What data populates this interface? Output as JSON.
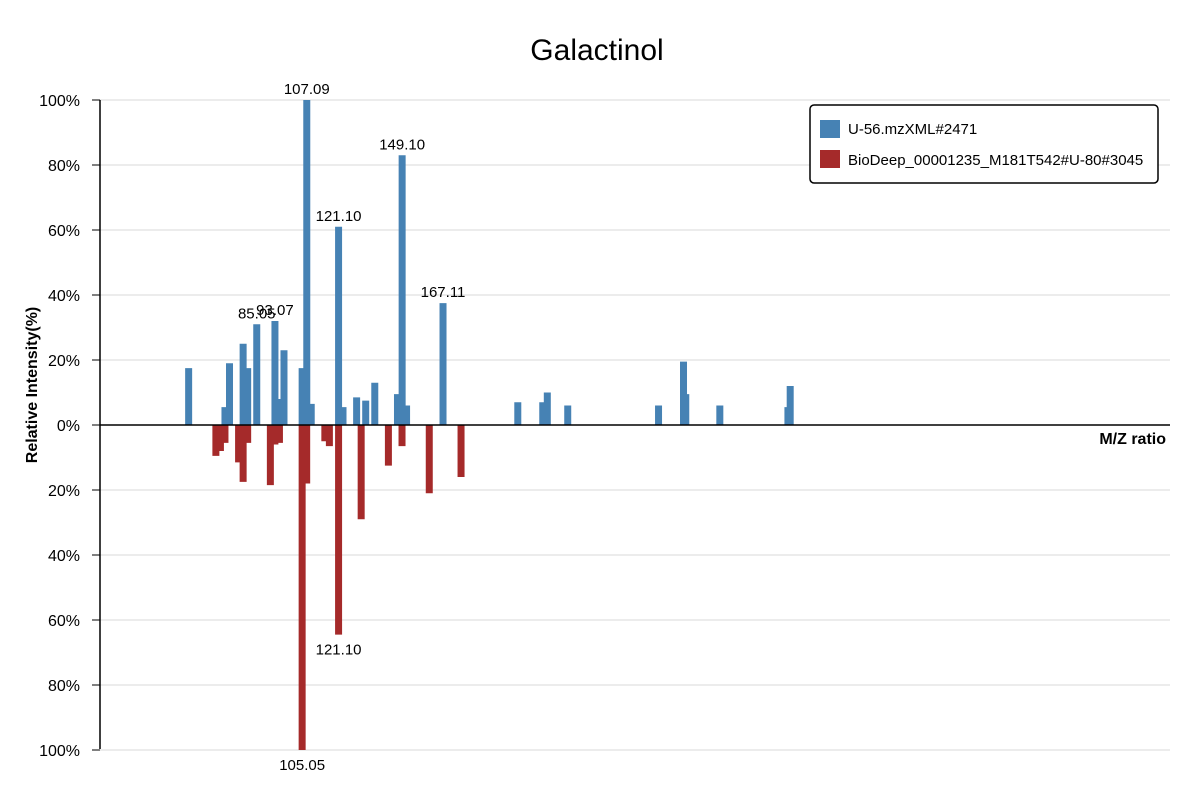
{
  "chart_data": {
    "type": "bar",
    "title": "Galactinol",
    "xlabel": "M/Z ratio",
    "ylabel": "Relative Intensity(%)",
    "ylim": [
      -100,
      100
    ],
    "yticks": [
      {
        "value": 100,
        "label": "100%"
      },
      {
        "value": 80,
        "label": "80%"
      },
      {
        "value": 60,
        "label": "60%"
      },
      {
        "value": 40,
        "label": "40%"
      },
      {
        "value": 20,
        "label": "20%"
      },
      {
        "value": 0,
        "label": "0%"
      },
      {
        "value": -20,
        "label": "20%"
      },
      {
        "value": -40,
        "label": "40%"
      },
      {
        "value": -60,
        "label": "60%"
      },
      {
        "value": -80,
        "label": "80%"
      },
      {
        "value": -100,
        "label": "100%"
      }
    ],
    "xlim": [
      50,
      380
    ],
    "grid": true,
    "legend_position": "top-right",
    "series": [
      {
        "name": "U-56.mzXML#2471",
        "color": "#4682b4",
        "direction": "up",
        "peaks": [
          {
            "mz": 55.05,
            "intensity": 17.5
          },
          {
            "mz": 71.05,
            "intensity": 5.5
          },
          {
            "mz": 73.05,
            "intensity": 19
          },
          {
            "mz": 79.05,
            "intensity": 25
          },
          {
            "mz": 81.05,
            "intensity": 17.5
          },
          {
            "mz": 85.05,
            "intensity": 31
          },
          {
            "mz": 93.07,
            "intensity": 32
          },
          {
            "mz": 95.05,
            "intensity": 8
          },
          {
            "mz": 97.05,
            "intensity": 23
          },
          {
            "mz": 105.05,
            "intensity": 17.5
          },
          {
            "mz": 107.09,
            "intensity": 100
          },
          {
            "mz": 109.05,
            "intensity": 6.5
          },
          {
            "mz": 121.1,
            "intensity": 61
          },
          {
            "mz": 123.05,
            "intensity": 5.5
          },
          {
            "mz": 129.05,
            "intensity": 8.5
          },
          {
            "mz": 133.05,
            "intensity": 7.5
          },
          {
            "mz": 137.05,
            "intensity": 13
          },
          {
            "mz": 147.05,
            "intensity": 9.5
          },
          {
            "mz": 149.1,
            "intensity": 83
          },
          {
            "mz": 151.05,
            "intensity": 6
          },
          {
            "mz": 167.11,
            "intensity": 37.5
          },
          {
            "mz": 200.05,
            "intensity": 7
          },
          {
            "mz": 211.05,
            "intensity": 7
          },
          {
            "mz": 213.05,
            "intensity": 10
          },
          {
            "mz": 222.05,
            "intensity": 6
          },
          {
            "mz": 262.05,
            "intensity": 6
          },
          {
            "mz": 273.05,
            "intensity": 19.5
          },
          {
            "mz": 274.05,
            "intensity": 9.5
          },
          {
            "mz": 289.05,
            "intensity": 6
          },
          {
            "mz": 319.05,
            "intensity": 5.5
          },
          {
            "mz": 320.05,
            "intensity": 12
          }
        ],
        "labels": [
          {
            "mz": 85.05,
            "text": "85.05"
          },
          {
            "mz": 93.07,
            "text": "93.07"
          },
          {
            "mz": 107.09,
            "text": "107.09"
          },
          {
            "mz": 121.1,
            "text": "121.10"
          },
          {
            "mz": 149.1,
            "text": "149.10"
          },
          {
            "mz": 167.11,
            "text": "167.11"
          }
        ]
      },
      {
        "name": "BioDeep_00001235_M181T542#U-80#3045",
        "color": "#a52a2a",
        "direction": "down",
        "peaks": [
          {
            "mz": 67.05,
            "intensity": 9.5
          },
          {
            "mz": 69.05,
            "intensity": 8
          },
          {
            "mz": 71.05,
            "intensity": 5.5
          },
          {
            "mz": 77.05,
            "intensity": 11.5
          },
          {
            "mz": 79.05,
            "intensity": 17.5
          },
          {
            "mz": 81.05,
            "intensity": 5.5
          },
          {
            "mz": 91.05,
            "intensity": 18.5
          },
          {
            "mz": 93.05,
            "intensity": 6
          },
          {
            "mz": 95.05,
            "intensity": 5.5
          },
          {
            "mz": 105.05,
            "intensity": 100
          },
          {
            "mz": 107.05,
            "intensity": 18
          },
          {
            "mz": 115.05,
            "intensity": 5
          },
          {
            "mz": 117.05,
            "intensity": 6.5
          },
          {
            "mz": 121.1,
            "intensity": 64.5
          },
          {
            "mz": 131.05,
            "intensity": 29
          },
          {
            "mz": 143.05,
            "intensity": 12.5
          },
          {
            "mz": 149.05,
            "intensity": 6.5
          },
          {
            "mz": 161.05,
            "intensity": 21
          },
          {
            "mz": 175.05,
            "intensity": 16
          }
        ],
        "labels": [
          {
            "mz": 105.05,
            "text": "105.05"
          },
          {
            "mz": 121.1,
            "text": "121.10"
          }
        ]
      }
    ]
  }
}
